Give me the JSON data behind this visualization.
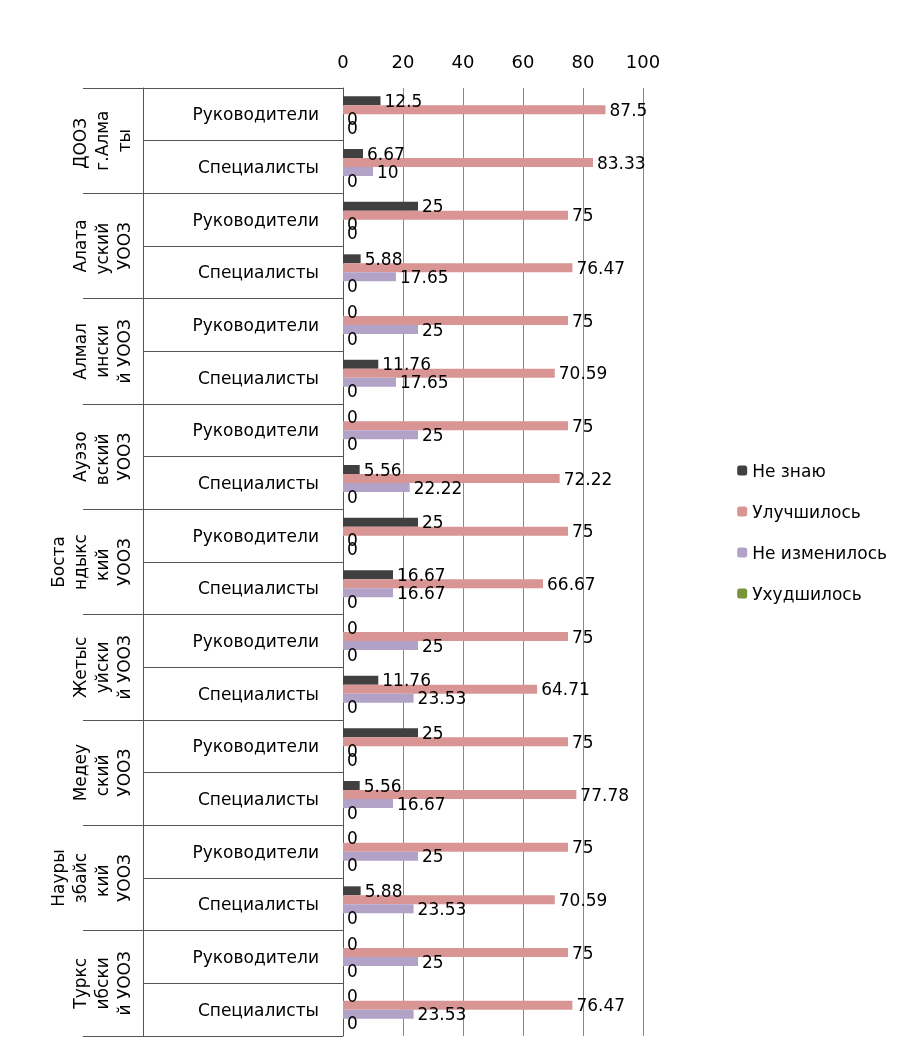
{
  "chart_data": {
    "type": "bar",
    "orientation": "horizontal",
    "categories": [
      "Руководители",
      "Специалисты",
      "Руководители",
      "Специалисты",
      "Руководители",
      "Специалисты",
      "Руководители",
      "Специалисты",
      "Руководители",
      "Специалисты",
      "Руководители",
      "Специалисты",
      "Руководители",
      "Специалисты",
      "Руководители",
      "Специалисты",
      "Руководители",
      "Специалисты"
    ],
    "annotations": [
      "ДООЗ г.Алматы",
      "Алатауский УООЗ",
      "Алмалинский УООЗ",
      "Ауэзовский УООЗ",
      "Бостандыкский УООЗ",
      "Жетысуйский УООЗ",
      "Медеуский УООЗ",
      "Наурызбайский УООЗ",
      "Турксибский УООЗ"
    ],
    "series": [
      {
        "name": "Не знаю",
        "color": "#404040",
        "values": [
          12.5,
          6.67,
          25,
          5.88,
          0,
          11.76,
          0,
          5.56,
          25,
          16.67,
          0,
          11.76,
          25,
          5.56,
          0,
          5.88,
          0,
          0
        ]
      },
      {
        "name": "Улучшилось",
        "color": "#d99594",
        "values": [
          87.5,
          83.33,
          75,
          76.47,
          75,
          70.59,
          75,
          72.22,
          75,
          66.67,
          75,
          64.71,
          75,
          77.78,
          75,
          70.59,
          75,
          76.47
        ]
      },
      {
        "name": "Не изменилось",
        "color": "#b3a2c7",
        "values": [
          0,
          10,
          0,
          17.65,
          25,
          17.65,
          25,
          22.22,
          0,
          16.67,
          25,
          23.53,
          0,
          16.67,
          25,
          23.53,
          25,
          23.53
        ]
      },
      {
        "name": "Ухудшилось",
        "color": "#77933c",
        "values": [
          0,
          0,
          0,
          0,
          0,
          0,
          0,
          0,
          0,
          0,
          0,
          0,
          0,
          0,
          0,
          0,
          0,
          0
        ]
      }
    ],
    "xlim": [
      0,
      100
    ],
    "xticks": [
      0,
      20,
      40,
      60,
      80,
      100
    ],
    "grid": "x",
    "legend": "right",
    "data_labels": true
  }
}
